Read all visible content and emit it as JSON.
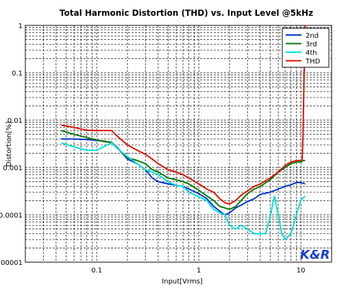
{
  "chart_data": {
    "type": "line",
    "title": "Total Harmonic Distortion (THD) vs. Input Level @5kHz",
    "xlabel": "Input[Vrms]",
    "ylabel": "Distortion[%]",
    "xscale": "log",
    "yscale": "log",
    "xlim": [
      0.02,
      20
    ],
    "ylim": [
      1e-05,
      1
    ],
    "xticks": [
      {
        "value": 0.1,
        "label": "0.1"
      },
      {
        "value": 1,
        "label": "1"
      },
      {
        "value": 10,
        "label": "10"
      }
    ],
    "yticks": [
      {
        "value": 1,
        "label": "1"
      },
      {
        "value": 0.1,
        "label": "0.1"
      },
      {
        "value": 0.01,
        "label": "0.01"
      },
      {
        "value": 0.001,
        "label": "0.001"
      },
      {
        "value": 0.0001,
        "label": "0.0001"
      },
      {
        "value": 1e-05,
        "label": "0.00001"
      }
    ],
    "grid": true,
    "legend_position": "top-right",
    "watermark": "K&R",
    "series": [
      {
        "name": "2nd",
        "color": "#0033cc",
        "x": [
          0.045,
          0.06,
          0.08,
          0.1,
          0.12,
          0.14,
          0.16,
          0.2,
          0.25,
          0.3,
          0.35,
          0.4,
          0.5,
          0.6,
          0.7,
          0.8,
          1.0,
          1.2,
          1.4,
          1.6,
          1.8,
          2.0,
          2.3,
          2.6,
          3.0,
          3.5,
          4.0,
          5.0,
          6.0,
          7.0,
          8.0,
          9.0,
          10.0,
          11.0
        ],
        "y": [
          0.004,
          0.004,
          0.0039,
          0.0037,
          0.0036,
          0.0033,
          0.0026,
          0.0015,
          0.0012,
          0.0009,
          0.0006,
          0.0005,
          0.00045,
          0.00042,
          0.0004,
          0.00035,
          0.00028,
          0.00022,
          0.00015,
          0.00012,
          0.0001,
          0.00011,
          0.00014,
          0.00016,
          0.00019,
          0.00022,
          0.00027,
          0.0003,
          0.00035,
          0.0004,
          0.00043,
          0.00048,
          0.00048,
          0.00045
        ]
      },
      {
        "name": "3rd",
        "color": "#007a00",
        "x": [
          0.045,
          0.06,
          0.08,
          0.1,
          0.12,
          0.14,
          0.16,
          0.2,
          0.25,
          0.3,
          0.35,
          0.4,
          0.5,
          0.6,
          0.7,
          0.8,
          1.0,
          1.2,
          1.4,
          1.6,
          1.8,
          2.0,
          2.3,
          2.6,
          3.0,
          3.5,
          4.0,
          5.0,
          6.0,
          7.0,
          8.0,
          9.0,
          10.0,
          10.5,
          11.0
        ],
        "y": [
          0.006,
          0.005,
          0.0043,
          0.0038,
          0.0035,
          0.0034,
          0.0025,
          0.0016,
          0.0014,
          0.0012,
          0.0009,
          0.0008,
          0.0006,
          0.00055,
          0.0005,
          0.00045,
          0.00033,
          0.00025,
          0.0002,
          0.00015,
          0.00014,
          0.00013,
          0.00015,
          0.0002,
          0.00028,
          0.00035,
          0.0004,
          0.00055,
          0.0008,
          0.001,
          0.0012,
          0.0013,
          0.0013,
          0.0014,
          0.0014
        ]
      },
      {
        "name": "4th",
        "color": "#00e0e0",
        "x": [
          0.045,
          0.06,
          0.08,
          0.1,
          0.12,
          0.14,
          0.16,
          0.2,
          0.25,
          0.3,
          0.35,
          0.4,
          0.5,
          0.6,
          0.7,
          0.8,
          1.0,
          1.2,
          1.4,
          1.6,
          1.8,
          2.0,
          2.3,
          2.6,
          3.0,
          3.5,
          4.0,
          4.5,
          5.0,
          5.5,
          6.0,
          6.5,
          7.0,
          8.0,
          9.0,
          10.0,
          11.0
        ],
        "y": [
          0.0033,
          0.0027,
          0.0023,
          0.0023,
          0.0028,
          0.0033,
          0.0025,
          0.0017,
          0.0012,
          0.0009,
          0.0008,
          0.0007,
          0.0005,
          0.00042,
          0.0004,
          0.0003,
          0.00024,
          0.0002,
          0.00013,
          0.00011,
          0.0001,
          6e-05,
          5e-05,
          6e-05,
          5e-05,
          4e-05,
          4e-05,
          4e-05,
          9e-05,
          0.00025,
          0.0001,
          4e-05,
          3e-05,
          4e-05,
          0.0001,
          0.0002,
          0.00025
        ]
      },
      {
        "name": "THD",
        "color": "#dd1100",
        "x": [
          0.045,
          0.06,
          0.08,
          0.1,
          0.12,
          0.14,
          0.16,
          0.2,
          0.25,
          0.3,
          0.35,
          0.4,
          0.5,
          0.6,
          0.7,
          0.8,
          1.0,
          1.2,
          1.4,
          1.6,
          1.8,
          2.0,
          2.3,
          2.6,
          3.0,
          3.5,
          4.0,
          5.0,
          6.0,
          7.0,
          8.0,
          9.0,
          10.0,
          10.3,
          10.5,
          10.7,
          11.0
        ],
        "y": [
          0.0078,
          0.007,
          0.0061,
          0.006,
          0.006,
          0.006,
          0.0045,
          0.003,
          0.0023,
          0.0019,
          0.0015,
          0.0012,
          0.0009,
          0.0008,
          0.0007,
          0.0006,
          0.00045,
          0.00035,
          0.0003,
          0.00022,
          0.00018,
          0.00017,
          0.0002,
          0.00026,
          0.00032,
          0.0004,
          0.00045,
          0.0006,
          0.0008,
          0.0011,
          0.0013,
          0.0014,
          0.0014,
          0.0015,
          0.005,
          0.05,
          1.0
        ]
      }
    ]
  }
}
